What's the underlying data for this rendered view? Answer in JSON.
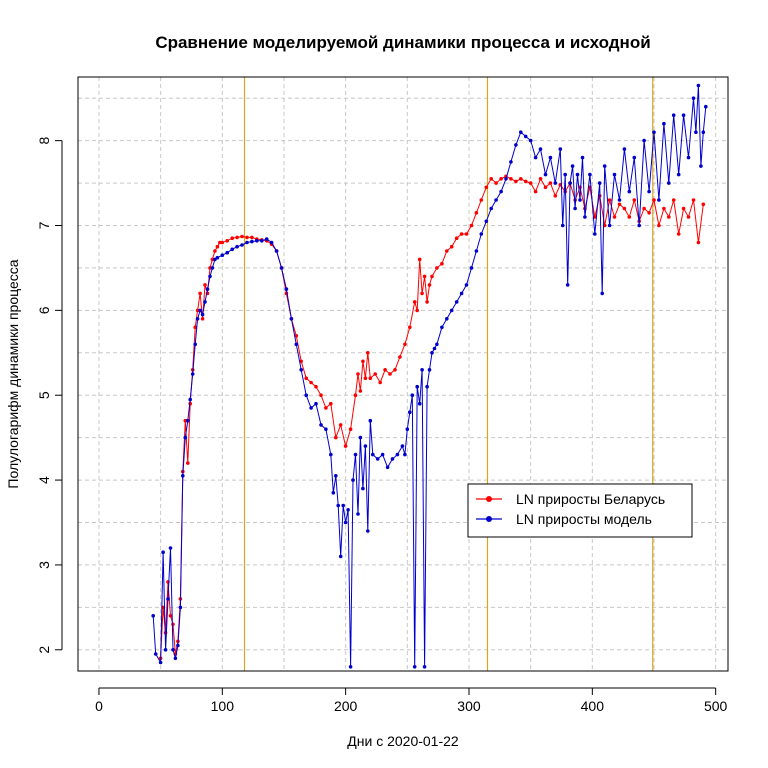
{
  "chart_data": {
    "type": "line",
    "title": "Сравнение моделируемой динамики процесса и исходной",
    "xlabel": "Дни с 2020-01-22",
    "ylabel": "Полулогарифм динамики процесса",
    "xlim": [
      -17,
      510
    ],
    "ylim": [
      1.75,
      8.75
    ],
    "x_ticks": [
      0,
      100,
      200,
      300,
      400,
      500
    ],
    "y_ticks": [
      2,
      3,
      4,
      5,
      6,
      7,
      8
    ],
    "grid": true,
    "legend_position": "center-right",
    "vertical_lines": [
      118,
      315,
      449
    ],
    "vertical_line_color": "#daa520",
    "series": [
      {
        "name": "LN приросты Беларусь",
        "color": "#ff0000",
        "points": [
          [
            50,
            1.9
          ],
          [
            52,
            2.5
          ],
          [
            54,
            2.2
          ],
          [
            56,
            2.8
          ],
          [
            58,
            2.4
          ],
          [
            60,
            2.3
          ],
          [
            62,
            1.95
          ],
          [
            64,
            2.1
          ],
          [
            66,
            2.6
          ],
          [
            68,
            4.1
          ],
          [
            70,
            4.7
          ],
          [
            72,
            4.2
          ],
          [
            74,
            4.9
          ],
          [
            76,
            5.3
          ],
          [
            78,
            5.8
          ],
          [
            80,
            6.0
          ],
          [
            82,
            6.2
          ],
          [
            84,
            5.9
          ],
          [
            86,
            6.3
          ],
          [
            88,
            6.2
          ],
          [
            90,
            6.5
          ],
          [
            92,
            6.6
          ],
          [
            94,
            6.7
          ],
          [
            96,
            6.75
          ],
          [
            98,
            6.8
          ],
          [
            100,
            6.8
          ],
          [
            104,
            6.82
          ],
          [
            108,
            6.85
          ],
          [
            112,
            6.86
          ],
          [
            116,
            6.87
          ],
          [
            120,
            6.86
          ],
          [
            124,
            6.86
          ],
          [
            128,
            6.84
          ],
          [
            132,
            6.83
          ],
          [
            136,
            6.82
          ],
          [
            140,
            6.78
          ],
          [
            144,
            6.7
          ],
          [
            148,
            6.5
          ],
          [
            152,
            6.2
          ],
          [
            156,
            5.9
          ],
          [
            160,
            5.7
          ],
          [
            164,
            5.4
          ],
          [
            168,
            5.2
          ],
          [
            172,
            5.15
          ],
          [
            176,
            5.1
          ],
          [
            180,
            5.0
          ],
          [
            184,
            4.85
          ],
          [
            188,
            4.9
          ],
          [
            192,
            4.5
          ],
          [
            196,
            4.65
          ],
          [
            200,
            4.4
          ],
          [
            204,
            4.6
          ],
          [
            208,
            5.0
          ],
          [
            210,
            5.25
          ],
          [
            212,
            5.05
          ],
          [
            214,
            5.4
          ],
          [
            216,
            5.2
          ],
          [
            218,
            5.5
          ],
          [
            220,
            5.2
          ],
          [
            224,
            5.25
          ],
          [
            228,
            5.15
          ],
          [
            232,
            5.3
          ],
          [
            236,
            5.25
          ],
          [
            240,
            5.3
          ],
          [
            244,
            5.45
          ],
          [
            248,
            5.6
          ],
          [
            252,
            5.8
          ],
          [
            256,
            6.1
          ],
          [
            258,
            6.0
          ],
          [
            260,
            6.6
          ],
          [
            262,
            6.2
          ],
          [
            264,
            6.4
          ],
          [
            266,
            6.1
          ],
          [
            268,
            6.3
          ],
          [
            270,
            6.4
          ],
          [
            274,
            6.5
          ],
          [
            278,
            6.55
          ],
          [
            282,
            6.7
          ],
          [
            286,
            6.75
          ],
          [
            290,
            6.85
          ],
          [
            294,
            6.9
          ],
          [
            298,
            6.9
          ],
          [
            302,
            7.0
          ],
          [
            306,
            7.15
          ],
          [
            310,
            7.3
          ],
          [
            314,
            7.45
          ],
          [
            318,
            7.55
          ],
          [
            322,
            7.5
          ],
          [
            326,
            7.55
          ],
          [
            330,
            7.58
          ],
          [
            334,
            7.55
          ],
          [
            338,
            7.52
          ],
          [
            342,
            7.55
          ],
          [
            346,
            7.52
          ],
          [
            350,
            7.5
          ],
          [
            354,
            7.4
          ],
          [
            358,
            7.55
          ],
          [
            362,
            7.45
          ],
          [
            366,
            7.5
          ],
          [
            370,
            7.35
          ],
          [
            374,
            7.48
          ],
          [
            378,
            7.4
          ],
          [
            382,
            7.5
          ],
          [
            386,
            7.3
          ],
          [
            390,
            7.45
          ],
          [
            394,
            7.2
          ],
          [
            398,
            7.45
          ],
          [
            402,
            7.1
          ],
          [
            406,
            7.35
          ],
          [
            410,
            7.0
          ],
          [
            414,
            7.3
          ],
          [
            418,
            7.1
          ],
          [
            422,
            7.25
          ],
          [
            426,
            7.2
          ],
          [
            430,
            7.1
          ],
          [
            434,
            7.3
          ],
          [
            438,
            7.05
          ],
          [
            442,
            7.2
          ],
          [
            446,
            7.15
          ],
          [
            450,
            7.3
          ],
          [
            454,
            7.0
          ],
          [
            458,
            7.2
          ],
          [
            462,
            7.1
          ],
          [
            466,
            7.3
          ],
          [
            470,
            6.9
          ],
          [
            474,
            7.2
          ],
          [
            478,
            7.1
          ],
          [
            482,
            7.3
          ],
          [
            486,
            6.8
          ],
          [
            490,
            7.25
          ]
        ]
      },
      {
        "name": "LN приросты модель",
        "color": "#0000cd",
        "points": [
          [
            44,
            2.4
          ],
          [
            46,
            1.95
          ],
          [
            50,
            1.85
          ],
          [
            52,
            3.15
          ],
          [
            54,
            2.0
          ],
          [
            56,
            2.6
          ],
          [
            58,
            3.2
          ],
          [
            60,
            2.0
          ],
          [
            62,
            1.9
          ],
          [
            64,
            2.05
          ],
          [
            66,
            2.5
          ],
          [
            68,
            4.05
          ],
          [
            70,
            4.5
          ],
          [
            72,
            4.7
          ],
          [
            74,
            4.95
          ],
          [
            76,
            5.25
          ],
          [
            78,
            5.6
          ],
          [
            80,
            5.9
          ],
          [
            82,
            6.0
          ],
          [
            84,
            5.95
          ],
          [
            86,
            6.1
          ],
          [
            88,
            6.25
          ],
          [
            90,
            6.4
          ],
          [
            92,
            6.5
          ],
          [
            94,
            6.6
          ],
          [
            96,
            6.62
          ],
          [
            100,
            6.65
          ],
          [
            104,
            6.68
          ],
          [
            108,
            6.72
          ],
          [
            112,
            6.75
          ],
          [
            116,
            6.77
          ],
          [
            120,
            6.8
          ],
          [
            124,
            6.81
          ],
          [
            128,
            6.82
          ],
          [
            132,
            6.82
          ],
          [
            136,
            6.84
          ],
          [
            140,
            6.8
          ],
          [
            144,
            6.7
          ],
          [
            148,
            6.5
          ],
          [
            152,
            6.25
          ],
          [
            156,
            5.9
          ],
          [
            160,
            5.6
          ],
          [
            164,
            5.3
          ],
          [
            168,
            5.0
          ],
          [
            172,
            4.85
          ],
          [
            176,
            4.9
          ],
          [
            180,
            4.65
          ],
          [
            184,
            4.6
          ],
          [
            188,
            4.3
          ],
          [
            190,
            3.85
          ],
          [
            192,
            4.05
          ],
          [
            194,
            3.7
          ],
          [
            196,
            3.1
          ],
          [
            198,
            3.7
          ],
          [
            200,
            3.5
          ],
          [
            202,
            3.65
          ],
          [
            204,
            1.8
          ],
          [
            206,
            4.0
          ],
          [
            208,
            4.3
          ],
          [
            210,
            3.6
          ],
          [
            212,
            4.5
          ],
          [
            214,
            3.9
          ],
          [
            216,
            4.4
          ],
          [
            218,
            3.4
          ],
          [
            220,
            4.7
          ],
          [
            222,
            4.3
          ],
          [
            226,
            4.25
          ],
          [
            230,
            4.3
          ],
          [
            234,
            4.15
          ],
          [
            238,
            4.25
          ],
          [
            242,
            4.3
          ],
          [
            246,
            4.4
          ],
          [
            248,
            4.3
          ],
          [
            250,
            4.6
          ],
          [
            252,
            4.8
          ],
          [
            254,
            5.0
          ],
          [
            256,
            1.8
          ],
          [
            258,
            5.1
          ],
          [
            260,
            4.9
          ],
          [
            262,
            5.3
          ],
          [
            264,
            1.8
          ],
          [
            266,
            5.1
          ],
          [
            268,
            5.3
          ],
          [
            270,
            5.5
          ],
          [
            272,
            5.55
          ],
          [
            274,
            5.6
          ],
          [
            278,
            5.8
          ],
          [
            282,
            5.9
          ],
          [
            286,
            6.0
          ],
          [
            290,
            6.1
          ],
          [
            294,
            6.2
          ],
          [
            298,
            6.3
          ],
          [
            302,
            6.5
          ],
          [
            306,
            6.7
          ],
          [
            310,
            6.9
          ],
          [
            314,
            7.05
          ],
          [
            318,
            7.2
          ],
          [
            322,
            7.3
          ],
          [
            326,
            7.4
          ],
          [
            330,
            7.55
          ],
          [
            334,
            7.75
          ],
          [
            338,
            7.95
          ],
          [
            342,
            8.1
          ],
          [
            346,
            8.05
          ],
          [
            350,
            8.0
          ],
          [
            354,
            7.8
          ],
          [
            358,
            7.9
          ],
          [
            362,
            7.6
          ],
          [
            366,
            7.8
          ],
          [
            370,
            7.5
          ],
          [
            374,
            7.9
          ],
          [
            376,
            7.0
          ],
          [
            378,
            7.6
          ],
          [
            380,
            6.3
          ],
          [
            382,
            7.5
          ],
          [
            384,
            7.7
          ],
          [
            386,
            7.2
          ],
          [
            388,
            7.6
          ],
          [
            390,
            7.3
          ],
          [
            392,
            7.8
          ],
          [
            394,
            7.1
          ],
          [
            398,
            7.6
          ],
          [
            402,
            6.9
          ],
          [
            406,
            7.5
          ],
          [
            408,
            6.2
          ],
          [
            410,
            7.7
          ],
          [
            414,
            7.0
          ],
          [
            418,
            7.6
          ],
          [
            422,
            7.3
          ],
          [
            426,
            7.9
          ],
          [
            430,
            7.4
          ],
          [
            434,
            7.8
          ],
          [
            438,
            7.0
          ],
          [
            442,
            8.0
          ],
          [
            446,
            7.4
          ],
          [
            450,
            8.1
          ],
          [
            454,
            7.3
          ],
          [
            458,
            8.2
          ],
          [
            462,
            7.5
          ],
          [
            466,
            8.3
          ],
          [
            470,
            7.6
          ],
          [
            474,
            8.3
          ],
          [
            478,
            7.8
          ],
          [
            482,
            8.5
          ],
          [
            484,
            8.1
          ],
          [
            486,
            8.65
          ],
          [
            488,
            7.7
          ],
          [
            490,
            8.1
          ],
          [
            492,
            8.4
          ]
        ]
      }
    ]
  }
}
